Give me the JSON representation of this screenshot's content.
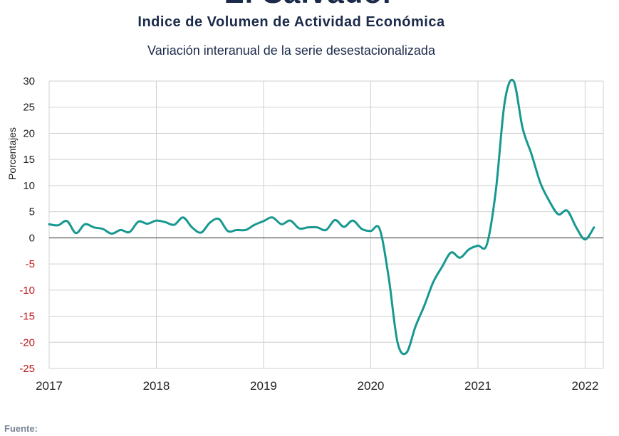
{
  "title_top": "El Salvador",
  "title": "Indice de Volumen de  Actividad Económica",
  "subtitle": "Variación interanual de la serie desestacionalizada",
  "source_label": "Fuente:",
  "colors": {
    "line": "#179890",
    "negative_tick": "#c0181c",
    "axis_text": "#222222",
    "grid": "#d0d0d0",
    "zero_line": "#707070"
  },
  "chart_data": {
    "type": "line",
    "title": "Indice de Volumen de  Actividad Económica",
    "subtitle": "Variación interanual de la serie desestacionalizada",
    "xlabel": "",
    "ylabel": "Porcentajes",
    "ylim": [
      -25,
      30
    ],
    "yticks": [
      30,
      25,
      20,
      15,
      10,
      5,
      0,
      -5,
      -10,
      -15,
      -20,
      -25
    ],
    "xlim": [
      2017.0,
      2022.17
    ],
    "xticks": [
      2017,
      2018,
      2019,
      2020,
      2021,
      2022
    ],
    "grid": true,
    "series": [
      {
        "points": [
          [
            2017.0,
            2.6
          ],
          [
            2017.083,
            2.4
          ],
          [
            2017.167,
            3.2
          ],
          [
            2017.25,
            0.9
          ],
          [
            2017.333,
            2.6
          ],
          [
            2017.417,
            2.0
          ],
          [
            2017.5,
            1.7
          ],
          [
            2017.583,
            0.8
          ],
          [
            2017.667,
            1.5
          ],
          [
            2017.75,
            1.1
          ],
          [
            2017.833,
            3.1
          ],
          [
            2017.917,
            2.7
          ],
          [
            2018.0,
            3.3
          ],
          [
            2018.083,
            3.0
          ],
          [
            2018.167,
            2.5
          ],
          [
            2018.25,
            3.9
          ],
          [
            2018.333,
            2.0
          ],
          [
            2018.417,
            1.0
          ],
          [
            2018.5,
            2.9
          ],
          [
            2018.583,
            3.6
          ],
          [
            2018.667,
            1.3
          ],
          [
            2018.75,
            1.5
          ],
          [
            2018.833,
            1.5
          ],
          [
            2018.917,
            2.5
          ],
          [
            2019.0,
            3.2
          ],
          [
            2019.083,
            3.9
          ],
          [
            2019.167,
            2.6
          ],
          [
            2019.25,
            3.3
          ],
          [
            2019.333,
            1.8
          ],
          [
            2019.417,
            2.0
          ],
          [
            2019.5,
            2.0
          ],
          [
            2019.583,
            1.5
          ],
          [
            2019.667,
            3.4
          ],
          [
            2019.75,
            2.1
          ],
          [
            2019.833,
            3.3
          ],
          [
            2019.917,
            1.7
          ],
          [
            2020.0,
            1.3
          ],
          [
            2020.083,
            1.7
          ],
          [
            2020.167,
            -7.5
          ],
          [
            2020.25,
            -20.0
          ],
          [
            2020.333,
            -22.0
          ],
          [
            2020.417,
            -17.0
          ],
          [
            2020.5,
            -13.0
          ],
          [
            2020.583,
            -8.5
          ],
          [
            2020.667,
            -5.5
          ],
          [
            2020.75,
            -2.8
          ],
          [
            2020.833,
            -3.8
          ],
          [
            2020.917,
            -2.2
          ],
          [
            2021.0,
            -1.5
          ],
          [
            2021.083,
            -1.3
          ],
          [
            2021.167,
            9.0
          ],
          [
            2021.25,
            26.0
          ],
          [
            2021.333,
            30.0
          ],
          [
            2021.417,
            21.0
          ],
          [
            2021.5,
            16.0
          ],
          [
            2021.583,
            10.5
          ],
          [
            2021.667,
            7.0
          ],
          [
            2021.75,
            4.5
          ],
          [
            2021.833,
            5.2
          ],
          [
            2021.917,
            2.0
          ],
          [
            2022.0,
            -0.3
          ],
          [
            2022.083,
            2.0
          ]
        ]
      }
    ]
  }
}
